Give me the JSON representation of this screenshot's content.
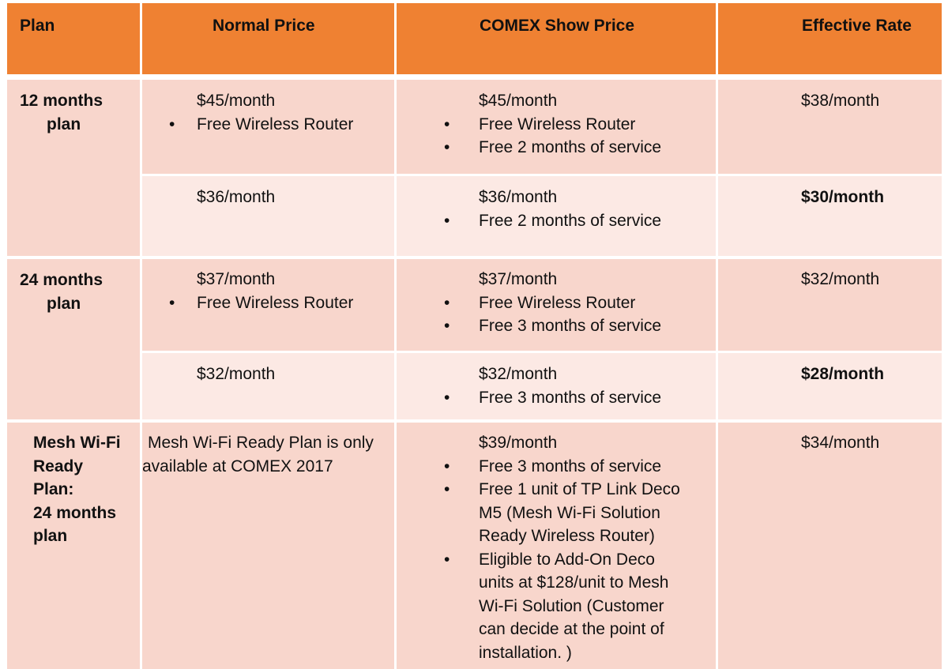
{
  "header": {
    "plan": "Plan",
    "normal": "Normal Price",
    "comex": "COMEX Show Price",
    "effective": "Effective Rate"
  },
  "bullet": "•",
  "rows": {
    "r12": {
      "plan_line1": "12 months",
      "plan_line2": "plan",
      "a": {
        "normal_price": "$45/month",
        "normal_item": "Free Wireless Router",
        "comex_price": "$45/month",
        "comex_items": [
          "Free Wireless Router",
          "Free 2 months of service"
        ],
        "effective": "$38/month"
      },
      "b": {
        "normal_price": "$36/month",
        "comex_price": "$36/month",
        "comex_items": [
          "Free 2 months of service"
        ],
        "effective": "$30/month"
      }
    },
    "r24": {
      "plan_line1": "24 months",
      "plan_line2": "plan",
      "a": {
        "normal_price": "$37/month",
        "normal_item": "Free Wireless Router",
        "comex_price": "$37/month",
        "comex_items": [
          "Free Wireless Router",
          "Free 3 months of service"
        ],
        "effective": "$32/month"
      },
      "b": {
        "normal_price": "$32/month",
        "comex_price": "$32/month",
        "comex_items": [
          "Free 3 months of service"
        ],
        "effective": "$28/month"
      }
    },
    "mesh": {
      "plan_lines": [
        "Mesh Wi-Fi",
        "Ready",
        "Plan:",
        "24 months",
        "plan"
      ],
      "normal_lines": [
        "Mesh Wi-Fi Ready Plan is only",
        "available at COMEX 2017"
      ],
      "comex_price": "$39/month",
      "comex_item1": "Free 3 months of service",
      "comex_item2_lines": [
        "Free 1 unit of TP Link Deco",
        "M5 (Mesh Wi-Fi Solution",
        "Ready Wireless Router)"
      ],
      "comex_item3_lines": [
        "Eligible to Add-On Deco",
        "units at $128/unit to Mesh",
        "Wi-Fi Solution (Customer",
        "can decide at the point of",
        "installation. )"
      ],
      "effective": "$34/month"
    }
  }
}
